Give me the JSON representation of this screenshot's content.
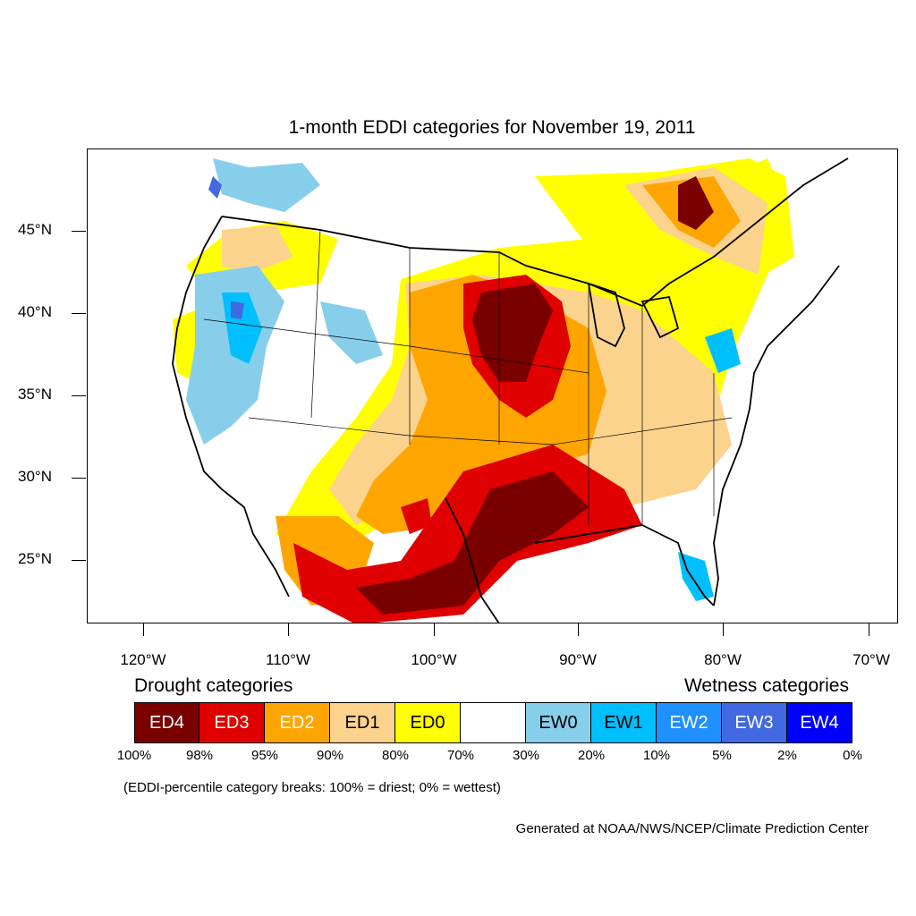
{
  "title": "1-month EDDI categories for November 19, 2011",
  "map": {
    "lat_range": [
      21,
      50
    ],
    "lon_range": [
      -124,
      -68
    ],
    "lat_ticks": [
      "45°N",
      "40°N",
      "35°N",
      "30°N",
      "25°N"
    ],
    "lon_ticks": [
      "120°W",
      "110°W",
      "100°W",
      "90°W",
      "80°W",
      "70°W"
    ],
    "colors": {
      "ED4": "#7a0000",
      "ED3": "#e00000",
      "ED2": "#ffa500",
      "ED1": "#fcd38d",
      "ED0": "#ffff00",
      "neutral": "#ffffff",
      "EW0": "#87ceeb",
      "EW1": "#00bfff",
      "EW2": "#1e90ff",
      "EW3": "#4169e1",
      "EW4": "#0000ff"
    }
  },
  "legend": {
    "drought_title": "Drought categories",
    "wetness_title": "Wetness categories",
    "categories": [
      {
        "label": "ED4",
        "color": "#7a0000",
        "text_color": "#ffffff"
      },
      {
        "label": "ED3",
        "color": "#e00000",
        "text_color": "#ffffff"
      },
      {
        "label": "ED2",
        "color": "#ffa500",
        "text_color": "#ffffff"
      },
      {
        "label": "ED1",
        "color": "#fcd38d",
        "text_color": "#000000"
      },
      {
        "label": "ED0",
        "color": "#ffff00",
        "text_color": "#000000"
      },
      {
        "label": "",
        "color": "#ffffff",
        "text_color": "#000000"
      },
      {
        "label": "EW0",
        "color": "#87ceeb",
        "text_color": "#000000"
      },
      {
        "label": "EW1",
        "color": "#00bfff",
        "text_color": "#000000"
      },
      {
        "label": "EW2",
        "color": "#1e90ff",
        "text_color": "#ffffff"
      },
      {
        "label": "EW3",
        "color": "#4169e1",
        "text_color": "#ffffff"
      },
      {
        "label": "EW4",
        "color": "#0000ff",
        "text_color": "#ffffff"
      }
    ],
    "percent_ticks": [
      "100%",
      "98%",
      "95%",
      "90%",
      "80%",
      "70%",
      "30%",
      "20%",
      "10%",
      "5%",
      "2%",
      "0%"
    ]
  },
  "note": "(EDDI-percentile category breaks: 100% = driest; 0% = wettest)",
  "credit": "Generated at NOAA/NWS/NCEP/Climate Prediction Center"
}
